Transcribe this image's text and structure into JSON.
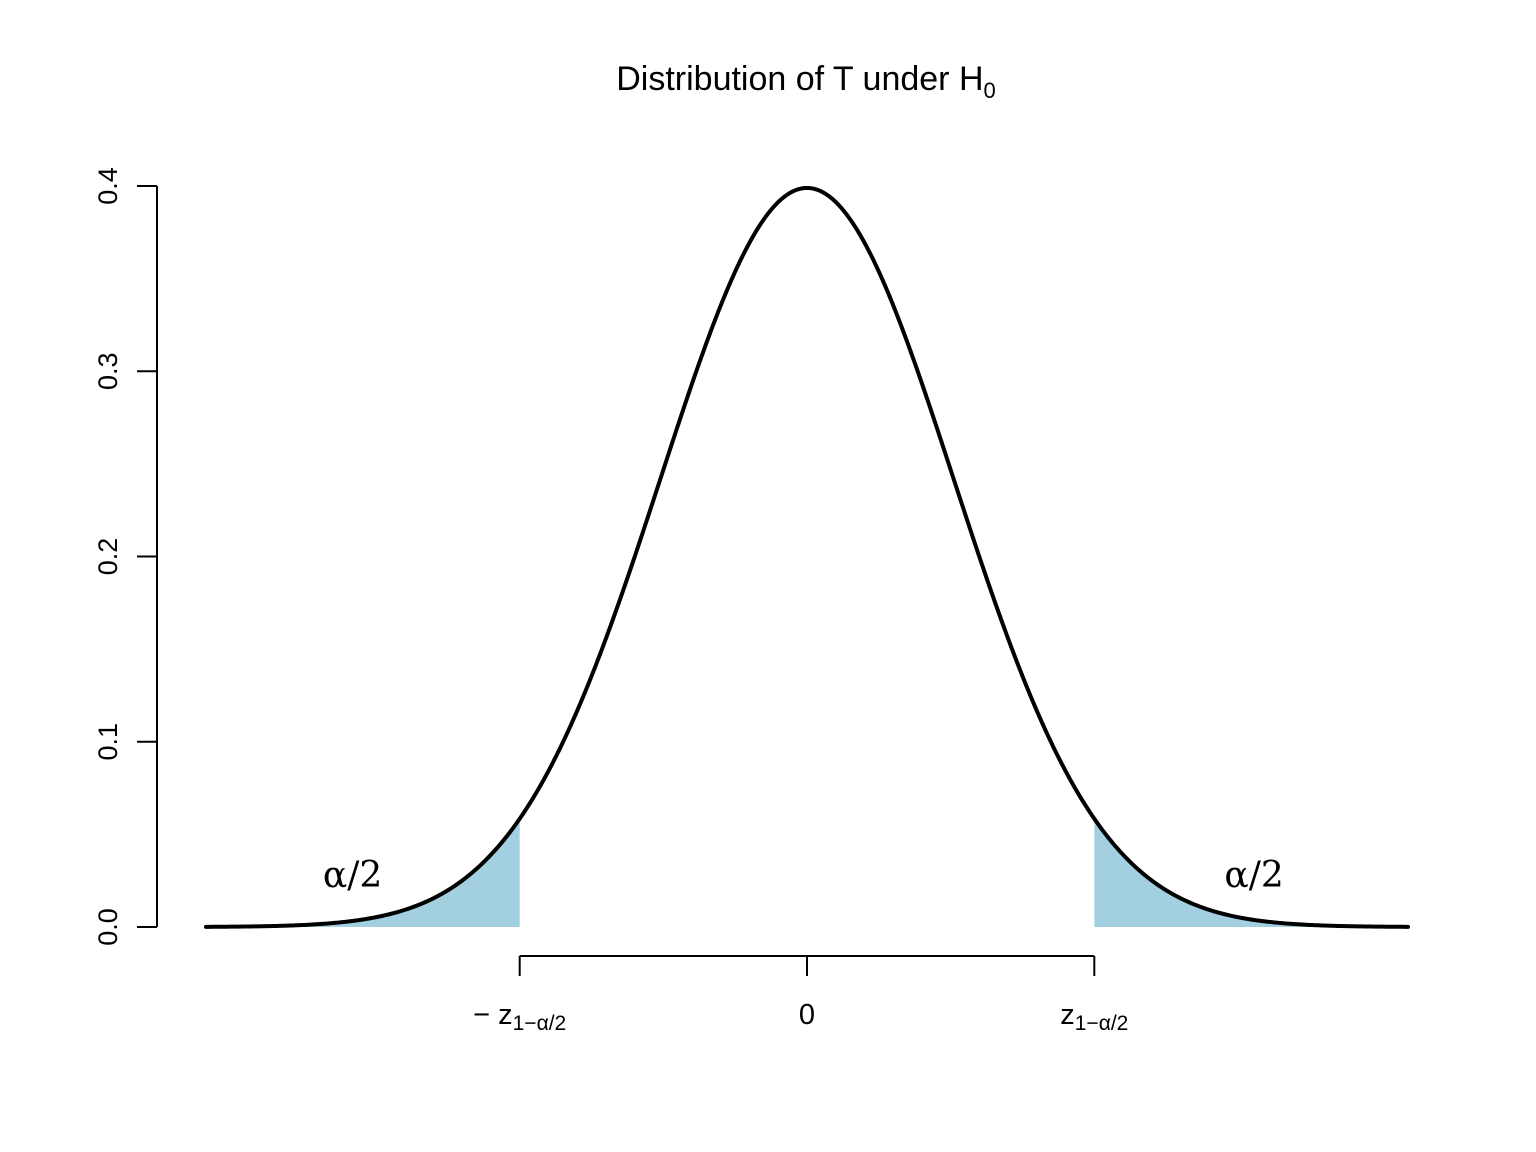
{
  "chart_data": {
    "type": "area",
    "title": {
      "main": "Distribution of T under H",
      "subscript": "0"
    },
    "distribution": "standard-normal",
    "x_range": [
      -4.1,
      4.1
    ],
    "ylim": [
      0,
      0.4
    ],
    "y_ticks": [
      0.0,
      0.1,
      0.2,
      0.3,
      0.4
    ],
    "y_tick_labels": [
      "0.0",
      "0.1",
      "0.2",
      "0.3",
      "0.4"
    ],
    "critical_value": 1.96,
    "x_ticks": [
      {
        "value": -1.96,
        "prefix": "−",
        "main": "z",
        "subscript": "1−α/2"
      },
      {
        "value": 0,
        "prefix": "",
        "main": "0",
        "subscript": ""
      },
      {
        "value": 1.96,
        "prefix": "",
        "main": "z",
        "subscript": "1−α/2"
      }
    ],
    "tail_labels": [
      {
        "text": "α/2",
        "x": -3.1,
        "y": 0.028
      },
      {
        "text": "α/2",
        "x": 3.05,
        "y": 0.028
      }
    ],
    "colors": {
      "curve": "#000000",
      "tail_fill": "#a2d0e0"
    },
    "grid": false,
    "legend": "none"
  }
}
